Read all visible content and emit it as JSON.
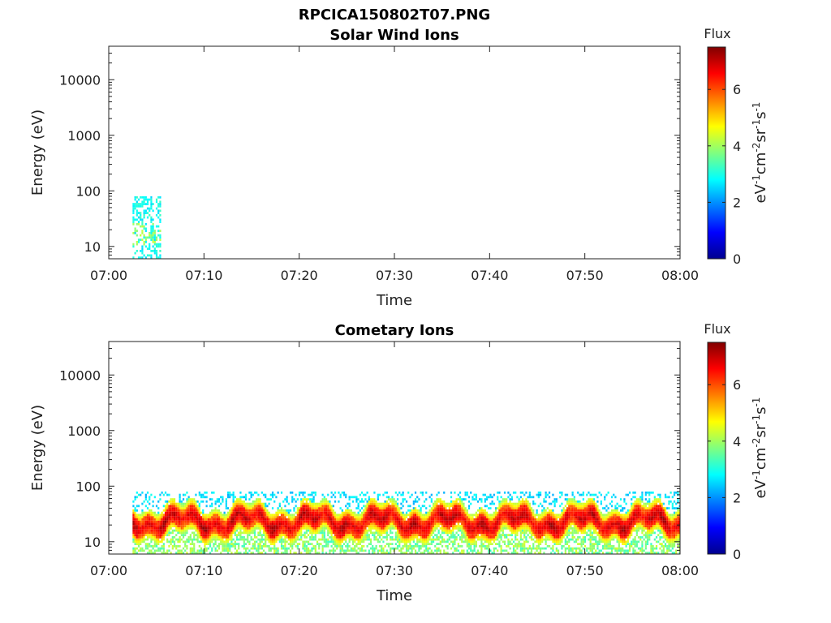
{
  "figure": {
    "title": "RPCICA150802T07.PNG"
  },
  "chart_data": [
    {
      "type": "heatmap",
      "title": "Solar Wind Ions",
      "xlabel": "Time",
      "ylabel": "Energy (eV)",
      "x_range": [
        "07:00",
        "08:00"
      ],
      "x_ticks": [
        "07:00",
        "07:10",
        "07:20",
        "07:30",
        "07:40",
        "07:50",
        "08:00"
      ],
      "y_scale": "log",
      "y_range": [
        6,
        40000
      ],
      "y_ticks": [
        10,
        100,
        1000,
        10000
      ],
      "y_tick_labels": [
        "10",
        "100",
        "1000",
        "10000"
      ],
      "colorbar": {
        "title": "Flux",
        "units": "eV-1cm-2sr-1s-1",
        "range": [
          0,
          7.5
        ],
        "ticks": [
          "0",
          "2",
          "4",
          "6"
        ]
      },
      "data_extent": {
        "time_start": "07:02:30",
        "time_end": "07:05:30",
        "energy_min_eV": 6,
        "energy_max_eV": 80,
        "flux_typical": 2.5,
        "flux_max": 4.3
      },
      "grid": false
    },
    {
      "type": "heatmap",
      "title": "Cometary Ions",
      "xlabel": "Time",
      "ylabel": "Energy (eV)",
      "x_range": [
        "07:00",
        "08:00"
      ],
      "x_ticks": [
        "07:00",
        "07:10",
        "07:20",
        "07:30",
        "07:40",
        "07:50",
        "08:00"
      ],
      "y_scale": "log",
      "y_range": [
        6,
        40000
      ],
      "y_ticks": [
        10,
        100,
        1000,
        10000
      ],
      "y_tick_labels": [
        "10",
        "100",
        "1000",
        "10000"
      ],
      "colorbar": {
        "title": "Flux",
        "units": "eV-1cm-2sr-1s-1",
        "range": [
          0,
          7.5
        ],
        "ticks": [
          "0",
          "2",
          "4",
          "6"
        ]
      },
      "data_extent": {
        "time_start": "07:02:30",
        "time_end": "08:00:00",
        "energy_min_eV": 6,
        "energy_max_eV": 80,
        "peak_band_eV": [
          15,
          35
        ],
        "flux_peak": 7.2
      },
      "grid": false
    }
  ]
}
